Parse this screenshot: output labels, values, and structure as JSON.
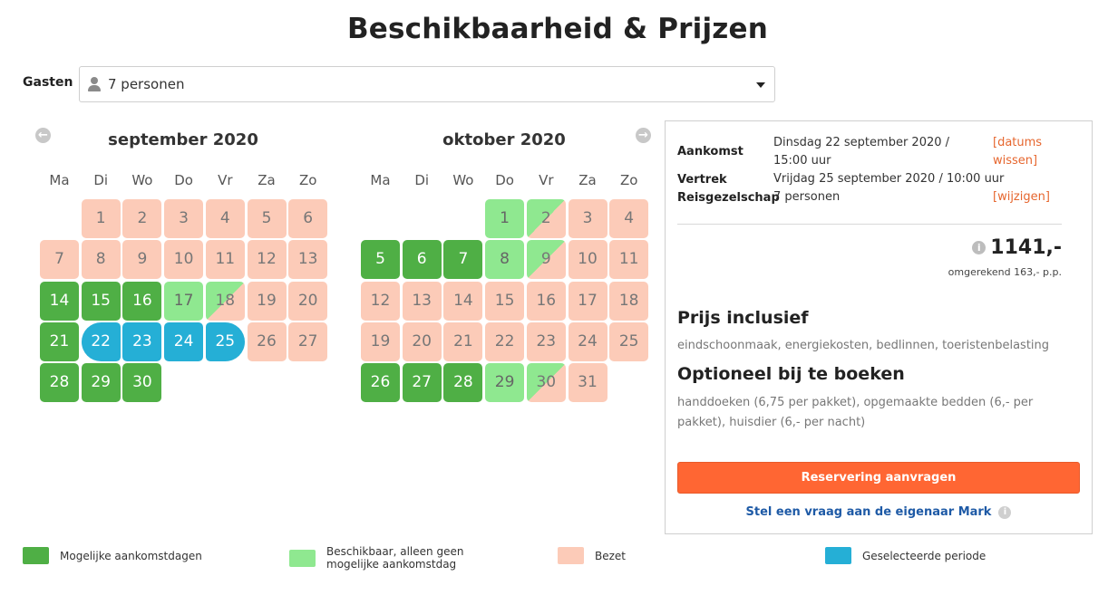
{
  "page_title": "Beschikbaarheid & Prijzen",
  "guests": {
    "label": "Gasten",
    "value": "7 personen"
  },
  "colors": {
    "occupied": "#fccbb8",
    "arrival": "#4faf45",
    "available": "#8fe890",
    "selected": "#25afd6",
    "accent": "#ff6633",
    "link": "#1e5aa6"
  },
  "weekdays": [
    "Ma",
    "Di",
    "Wo",
    "Do",
    "Vr",
    "Za",
    "Zo"
  ],
  "calendars": [
    {
      "month": "september 2020",
      "first_weekday": 1,
      "days": [
        {
          "d": "1",
          "s": "occupied"
        },
        {
          "d": "2",
          "s": "occupied"
        },
        {
          "d": "3",
          "s": "occupied"
        },
        {
          "d": "4",
          "s": "occupied"
        },
        {
          "d": "5",
          "s": "occupied"
        },
        {
          "d": "6",
          "s": "occupied"
        },
        {
          "d": "7",
          "s": "occupied"
        },
        {
          "d": "8",
          "s": "occupied"
        },
        {
          "d": "9",
          "s": "occupied"
        },
        {
          "d": "10",
          "s": "occupied"
        },
        {
          "d": "11",
          "s": "occupied"
        },
        {
          "d": "12",
          "s": "occupied"
        },
        {
          "d": "13",
          "s": "occupied"
        },
        {
          "d": "14",
          "s": "arrival"
        },
        {
          "d": "15",
          "s": "arrival"
        },
        {
          "d": "16",
          "s": "arrival"
        },
        {
          "d": "17",
          "s": "available"
        },
        {
          "d": "18",
          "s": "split"
        },
        {
          "d": "19",
          "s": "occupied"
        },
        {
          "d": "20",
          "s": "occupied"
        },
        {
          "d": "21",
          "s": "arrival"
        },
        {
          "d": "22",
          "s": "selected-start"
        },
        {
          "d": "23",
          "s": "selected"
        },
        {
          "d": "24",
          "s": "selected"
        },
        {
          "d": "25",
          "s": "selected-end"
        },
        {
          "d": "26",
          "s": "occupied"
        },
        {
          "d": "27",
          "s": "occupied"
        },
        {
          "d": "28",
          "s": "arrival"
        },
        {
          "d": "29",
          "s": "arrival"
        },
        {
          "d": "30",
          "s": "arrival"
        }
      ]
    },
    {
      "month": "oktober 2020",
      "first_weekday": 3,
      "days": [
        {
          "d": "1",
          "s": "available"
        },
        {
          "d": "2",
          "s": "split"
        },
        {
          "d": "3",
          "s": "occupied"
        },
        {
          "d": "4",
          "s": "occupied"
        },
        {
          "d": "5",
          "s": "arrival"
        },
        {
          "d": "6",
          "s": "arrival"
        },
        {
          "d": "7",
          "s": "arrival"
        },
        {
          "d": "8",
          "s": "available"
        },
        {
          "d": "9",
          "s": "split"
        },
        {
          "d": "10",
          "s": "occupied"
        },
        {
          "d": "11",
          "s": "occupied"
        },
        {
          "d": "12",
          "s": "occupied"
        },
        {
          "d": "13",
          "s": "occupied"
        },
        {
          "d": "14",
          "s": "occupied"
        },
        {
          "d": "15",
          "s": "occupied"
        },
        {
          "d": "16",
          "s": "occupied"
        },
        {
          "d": "17",
          "s": "occupied"
        },
        {
          "d": "18",
          "s": "occupied"
        },
        {
          "d": "19",
          "s": "occupied"
        },
        {
          "d": "20",
          "s": "occupied"
        },
        {
          "d": "21",
          "s": "occupied"
        },
        {
          "d": "22",
          "s": "occupied"
        },
        {
          "d": "23",
          "s": "occupied"
        },
        {
          "d": "24",
          "s": "occupied"
        },
        {
          "d": "25",
          "s": "occupied"
        },
        {
          "d": "26",
          "s": "arrival"
        },
        {
          "d": "27",
          "s": "arrival"
        },
        {
          "d": "28",
          "s": "arrival"
        },
        {
          "d": "29",
          "s": "available"
        },
        {
          "d": "30",
          "s": "split"
        },
        {
          "d": "31",
          "s": "occupied"
        }
      ]
    }
  ],
  "booking": {
    "arrival_label": "Aankomst",
    "arrival_value": "Dinsdag 22 september 2020 / 15:00 uur",
    "clear_dates_link": "[datums wissen]",
    "departure_label": "Vertrek",
    "departure_value": "Vrijdag 25 september 2020 / 10:00 uur",
    "party_label": "Reisgezelschap",
    "party_value": "7 personen",
    "change_link": "[wijzigen]",
    "price": "1141,-",
    "per_person": "omgerekend 163,- p.p.",
    "included_heading": "Prijs inclusief",
    "included_text": "eindschoonmaak, energiekosten, bedlinnen, toeristenbelasting",
    "optional_heading": "Optioneel bij te boeken",
    "optional_text": "handdoeken (6,75 per pakket), opgemaakte bedden (6,- per pakket), huisdier (6,- per nacht)",
    "reserve_button": "Reservering aanvragen",
    "ask_link": "Stel een vraag aan de eigenaar Mark"
  },
  "legend": [
    {
      "label": "Mogelijke aankomstdagen",
      "color": "#4faf45"
    },
    {
      "label": "Beschikbaar, alleen geen mogelijke aankomstdag",
      "color": "#8fe890"
    },
    {
      "label": "Bezet",
      "color": "#fccbb8"
    },
    {
      "label": "Geselecteerde periode",
      "color": "#25afd6"
    }
  ]
}
